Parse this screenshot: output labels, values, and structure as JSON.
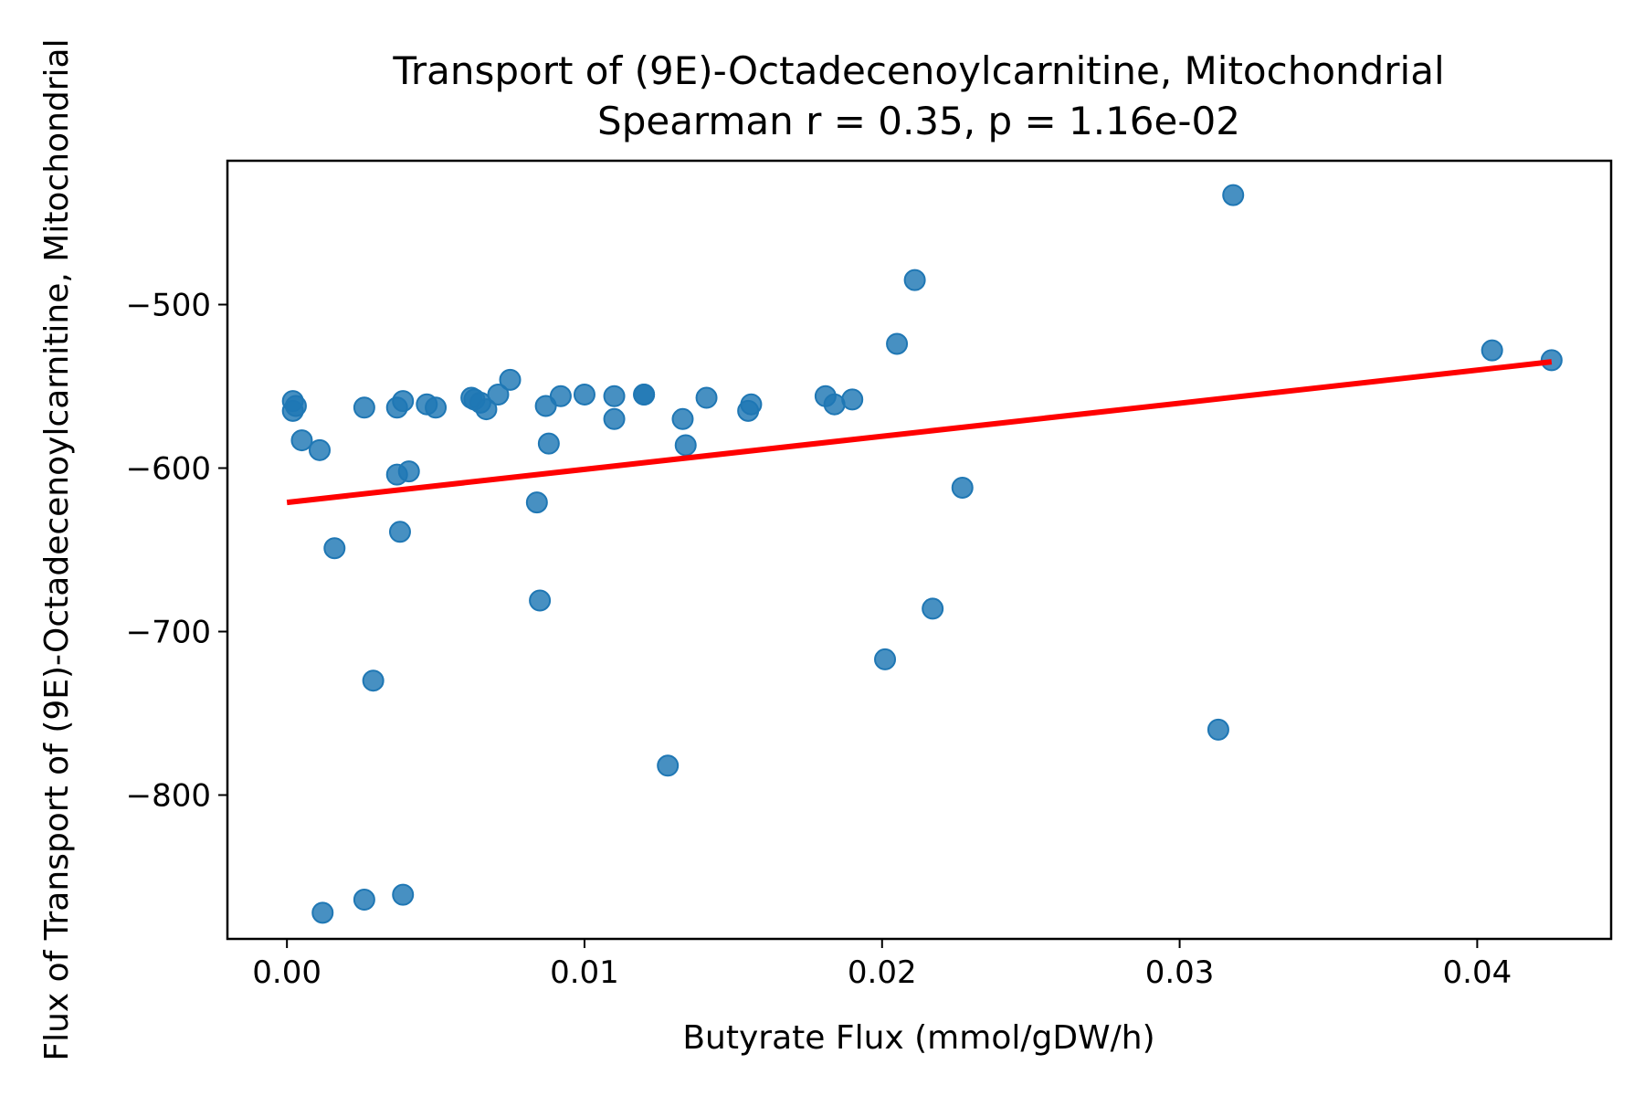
{
  "chart_data": {
    "type": "scatter",
    "title": "Transport of (9E)-Octadecenoylcarnitine, Mitochondrial",
    "subtitle": "Spearman r = 0.35, p = 1.16e-02",
    "xlabel": "Butyrate Flux (mmol/gDW/h)",
    "ylabel": "Flux of Transport of (9E)-Octadecenoylcarnitine, Mitochondrial",
    "xlim": [
      -0.002,
      0.0445
    ],
    "ylim": [
      -888,
      -412
    ],
    "x_ticks": [
      0.0,
      0.01,
      0.02,
      0.03,
      0.04
    ],
    "x_tick_labels": [
      "0.00",
      "0.01",
      "0.02",
      "0.03",
      "0.04"
    ],
    "y_ticks": [
      -800,
      -700,
      -600,
      -500
    ],
    "y_tick_labels": [
      "−800",
      "−700",
      "−600",
      "−500"
    ],
    "grid": false,
    "point_color": "#1f77b4",
    "fit_color": "#ff0000",
    "points": [
      {
        "x": 0.0002,
        "y": -559
      },
      {
        "x": 0.0002,
        "y": -565
      },
      {
        "x": 0.0003,
        "y": -562
      },
      {
        "x": 0.0005,
        "y": -583
      },
      {
        "x": 0.0011,
        "y": -589
      },
      {
        "x": 0.0012,
        "y": -872
      },
      {
        "x": 0.0016,
        "y": -649
      },
      {
        "x": 0.0026,
        "y": -563
      },
      {
        "x": 0.0026,
        "y": -864
      },
      {
        "x": 0.0029,
        "y": -730
      },
      {
        "x": 0.0037,
        "y": -563
      },
      {
        "x": 0.0037,
        "y": -604
      },
      {
        "x": 0.0038,
        "y": -639
      },
      {
        "x": 0.0039,
        "y": -861
      },
      {
        "x": 0.0039,
        "y": -559
      },
      {
        "x": 0.0041,
        "y": -602
      },
      {
        "x": 0.0047,
        "y": -561
      },
      {
        "x": 0.005,
        "y": -563
      },
      {
        "x": 0.0062,
        "y": -557
      },
      {
        "x": 0.0063,
        "y": -558
      },
      {
        "x": 0.0065,
        "y": -560
      },
      {
        "x": 0.0067,
        "y": -564
      },
      {
        "x": 0.0071,
        "y": -555
      },
      {
        "x": 0.0075,
        "y": -546
      },
      {
        "x": 0.0084,
        "y": -621
      },
      {
        "x": 0.0085,
        "y": -681
      },
      {
        "x": 0.0087,
        "y": -562
      },
      {
        "x": 0.0088,
        "y": -585
      },
      {
        "x": 0.0092,
        "y": -556
      },
      {
        "x": 0.01,
        "y": -555
      },
      {
        "x": 0.011,
        "y": -556
      },
      {
        "x": 0.011,
        "y": -570
      },
      {
        "x": 0.012,
        "y": -555
      },
      {
        "x": 0.012,
        "y": -555
      },
      {
        "x": 0.0128,
        "y": -782
      },
      {
        "x": 0.0133,
        "y": -570
      },
      {
        "x": 0.0134,
        "y": -586
      },
      {
        "x": 0.0141,
        "y": -557
      },
      {
        "x": 0.0155,
        "y": -565
      },
      {
        "x": 0.0156,
        "y": -561
      },
      {
        "x": 0.0181,
        "y": -556
      },
      {
        "x": 0.0184,
        "y": -561
      },
      {
        "x": 0.019,
        "y": -558
      },
      {
        "x": 0.0201,
        "y": -717
      },
      {
        "x": 0.0205,
        "y": -524
      },
      {
        "x": 0.0211,
        "y": -485
      },
      {
        "x": 0.0217,
        "y": -686
      },
      {
        "x": 0.0227,
        "y": -612
      },
      {
        "x": 0.0313,
        "y": -760
      },
      {
        "x": 0.0318,
        "y": -433
      },
      {
        "x": 0.0405,
        "y": -528
      },
      {
        "x": 0.0425,
        "y": -534
      }
    ],
    "fit_line": {
      "x": [
        0.0,
        0.0425
      ],
      "y": [
        -621,
        -535
      ]
    }
  }
}
